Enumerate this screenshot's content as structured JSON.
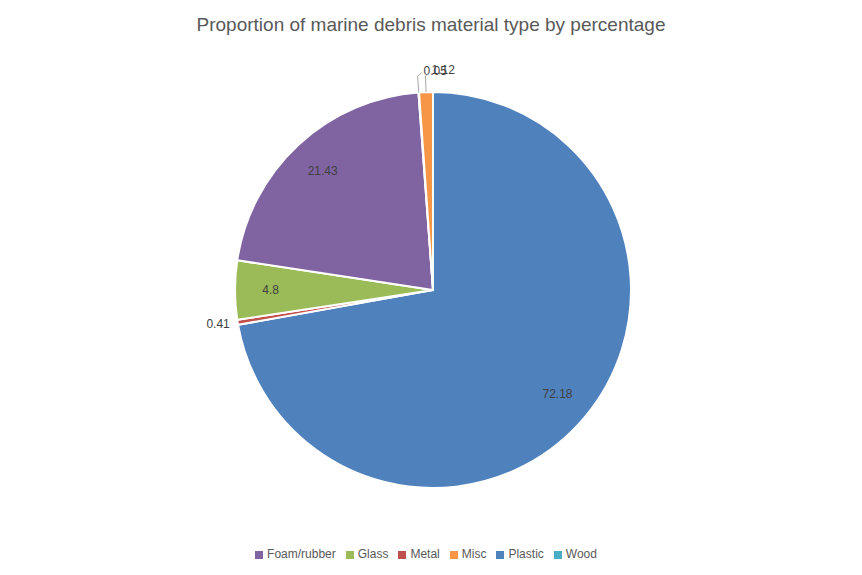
{
  "chart_data": {
    "type": "pie",
    "title": "Proportion of marine debris material type by percentage",
    "categories": [
      "Plastic",
      "Metal",
      "Glass",
      "Foam/rubber",
      "Wood",
      "Misc"
    ],
    "values": [
      72.18,
      0.41,
      4.8,
      21.43,
      0.05,
      1.12
    ],
    "colors": [
      "#4f81bd",
      "#c0504d",
      "#9bbb59",
      "#8064a2",
      "#4bacc6",
      "#f79646"
    ],
    "data_labels": true,
    "legend": "bottom"
  }
}
